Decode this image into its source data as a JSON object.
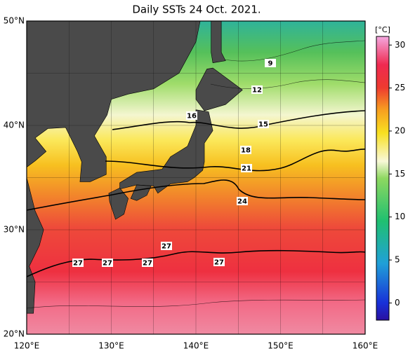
{
  "title": "Daily SSTs 24 Oct. 2021.",
  "map": {
    "lat_labels": [
      "50°N",
      "40°N",
      "30°N",
      "20°N"
    ],
    "lon_labels": [
      "120°E",
      "130°E",
      "140°E",
      "150°E",
      "160°E"
    ],
    "contour_labels": [
      9,
      12,
      15,
      16,
      18,
      21,
      24,
      27,
      27,
      27,
      27,
      27
    ]
  },
  "colorbar": {
    "unit": "[°C]",
    "range": [
      -2,
      31
    ],
    "ticks": [
      30,
      25,
      20,
      15,
      10,
      5,
      0
    ]
  }
}
